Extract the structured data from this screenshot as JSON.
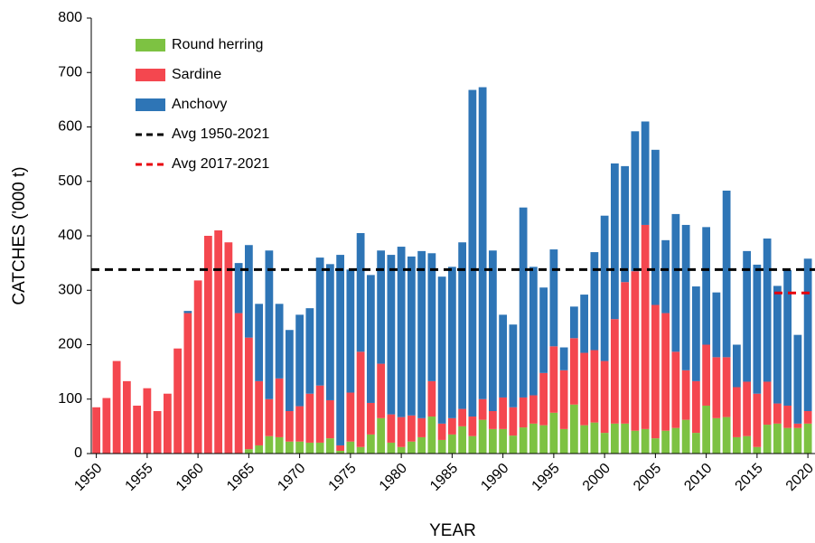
{
  "chart_data": {
    "type": "stacked_bar",
    "x_label": "YEAR",
    "y_label": "CATCHES ('000 t)",
    "x": [
      1950,
      1951,
      1952,
      1953,
      1954,
      1955,
      1956,
      1957,
      1958,
      1959,
      1960,
      1961,
      1962,
      1963,
      1964,
      1965,
      1966,
      1967,
      1968,
      1969,
      1970,
      1971,
      1972,
      1973,
      1974,
      1975,
      1976,
      1977,
      1978,
      1979,
      1980,
      1981,
      1982,
      1983,
      1984,
      1985,
      1986,
      1987,
      1988,
      1989,
      1990,
      1991,
      1992,
      1993,
      1994,
      1995,
      1996,
      1997,
      1998,
      1999,
      2000,
      2001,
      2002,
      2003,
      2004,
      2005,
      2006,
      2007,
      2008,
      2009,
      2010,
      2011,
      2012,
      2013,
      2014,
      2015,
      2016,
      2017,
      2018,
      2019,
      2020
    ],
    "series": [
      {
        "name": "Round herring",
        "color": "#7dc242",
        "values": [
          0,
          0,
          0,
          0,
          0,
          0,
          0,
          0,
          0,
          0,
          0,
          0,
          0,
          0,
          0,
          8,
          15,
          32,
          30,
          22,
          22,
          20,
          20,
          28,
          5,
          22,
          12,
          35,
          65,
          20,
          12,
          22,
          30,
          68,
          25,
          35,
          50,
          32,
          62,
          45,
          45,
          33,
          48,
          55,
          52,
          75,
          45,
          90,
          52,
          57,
          38,
          55,
          55,
          42,
          45,
          28,
          42,
          47,
          62,
          38,
          88,
          65,
          67,
          30,
          32,
          12,
          53,
          55,
          47,
          47,
          55
        ]
      },
      {
        "name": "Sardine",
        "color": "#f4474f",
        "values": [
          85,
          102,
          170,
          133,
          88,
          120,
          78,
          110,
          193,
          258,
          318,
          400,
          410,
          388,
          258,
          205,
          118,
          68,
          108,
          56,
          65,
          90,
          105,
          70,
          10,
          90,
          175,
          58,
          100,
          52,
          55,
          48,
          35,
          65,
          30,
          30,
          32,
          36,
          38,
          33,
          58,
          52,
          55,
          52,
          96,
          122,
          108,
          122,
          133,
          133,
          132,
          192,
          260,
          293,
          375,
          245,
          216,
          140,
          91,
          95,
          112,
          112,
          110,
          92,
          100,
          98,
          79,
          37,
          41,
          8,
          23
        ]
      },
      {
        "name": "Anchovy",
        "color": "#2e75b6",
        "values": [
          0,
          0,
          0,
          0,
          0,
          0,
          0,
          0,
          0,
          4,
          0,
          0,
          0,
          0,
          92,
          170,
          142,
          273,
          137,
          149,
          168,
          157,
          235,
          250,
          350,
          226,
          218,
          235,
          208,
          293,
          313,
          292,
          307,
          235,
          270,
          278,
          306,
          600,
          573,
          295,
          152,
          152,
          349,
          236,
          157,
          178,
          42,
          58,
          107,
          180,
          267,
          286,
          213,
          257,
          190,
          285,
          134,
          253,
          267,
          174,
          216,
          119,
          306,
          78,
          240,
          237,
          263,
          216,
          249,
          163,
          280
        ]
      }
    ],
    "reference_lines": [
      {
        "name": "Avg 1950-2021",
        "value": 338,
        "color": "#000000",
        "x_range": [
          1949.5,
          2020.7
        ]
      },
      {
        "name": "Avg 2017-2021",
        "value": 295,
        "color": "#e8000b",
        "x_range": [
          2016.7,
          2020.7
        ]
      }
    ],
    "xlim": [
      1949.5,
      2020.7
    ],
    "xticks": [
      1950,
      1955,
      1960,
      1965,
      1970,
      1975,
      1980,
      1985,
      1990,
      1995,
      2000,
      2005,
      2010,
      2015,
      2020
    ],
    "ylim": [
      0,
      800
    ],
    "yticks": [
      0,
      100,
      200,
      300,
      400,
      500,
      600,
      700,
      800
    ],
    "legend": "upper left"
  }
}
